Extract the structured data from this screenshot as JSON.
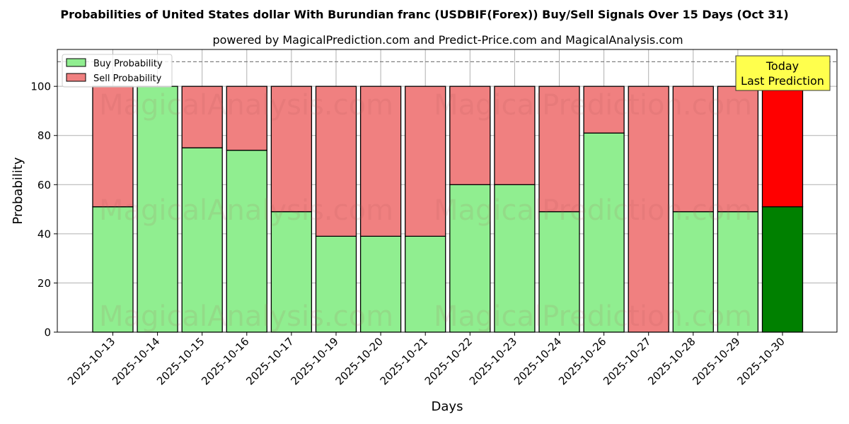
{
  "chart_data": {
    "type": "bar",
    "stacked": true,
    "title": "Probabilities of United States dollar With Burundian franc (USDBIF(Forex)) Buy/Sell Signals Over 15 Days (Oct 31)",
    "subtitle": "powered by MagicalPrediction.com and Predict-Price.com and MagicalAnalysis.com",
    "xlabel": "Days",
    "ylabel": "Probability",
    "ylim": [
      0,
      115
    ],
    "yticks": [
      0,
      20,
      40,
      60,
      80,
      100
    ],
    "grid": true,
    "legend_position": "upper left",
    "reference_line": {
      "y": 110,
      "style": "dashed",
      "color": "#808080"
    },
    "categories": [
      "2025-10-13",
      "2025-10-14",
      "2025-10-15",
      "2025-10-16",
      "2025-10-17",
      "2025-10-19",
      "2025-10-20",
      "2025-10-21",
      "2025-10-22",
      "2025-10-23",
      "2025-10-24",
      "2025-10-26",
      "2025-10-27",
      "2025-10-28",
      "2025-10-29",
      "2025-10-30"
    ],
    "series": [
      {
        "name": "Buy Probability",
        "color": "#90ee90",
        "values": [
          51,
          100,
          75,
          74,
          49,
          39,
          39,
          39,
          60,
          60,
          49,
          81,
          0,
          49,
          49,
          51
        ]
      },
      {
        "name": "Sell Probability",
        "color": "#f08080",
        "values": [
          49,
          0,
          25,
          26,
          51,
          61,
          61,
          61,
          40,
          40,
          51,
          19,
          100,
          51,
          51,
          49
        ]
      }
    ],
    "highlight": {
      "index": 15,
      "buy_color": "#008000",
      "sell_color": "#ff0000",
      "annotation": [
        "Today",
        "Last Prediction"
      ],
      "annotation_bg": "#ffff4d"
    },
    "watermarks": [
      "MagicalAnalysis.com",
      "MagicalPrediction.com"
    ]
  }
}
